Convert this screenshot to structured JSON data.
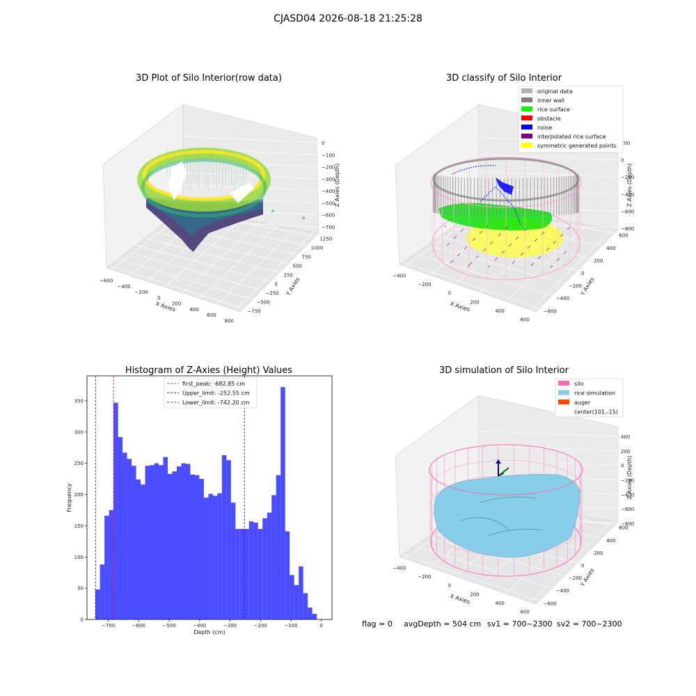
{
  "suptitle": "CJASD04 2026-08-18 21:25:28",
  "status": {
    "flag": "flag = 0",
    "avg_depth": "avgDepth = 504 cm",
    "sv1": "sv1 = 700~2300",
    "sv2": "sv2 = 700~2300"
  },
  "chart_data": [
    {
      "type": "scatter",
      "title": "3D Plot of Silo Interior(row data)",
      "xlabel": "X Axies",
      "ylabel": "Y Axies",
      "zlabel": "Z Axies (Depth)",
      "xticks": [
        "−600",
        "−400",
        "−200",
        "0",
        "200",
        "400",
        "600",
        "800"
      ],
      "yticks": [
        "−750",
        "−500",
        "−250",
        "0",
        "250",
        "500",
        "750",
        "1000",
        "1250"
      ],
      "zticks": [
        "0",
        "−100",
        "−200",
        "−300",
        "−400",
        "−500",
        "−600",
        "−700"
      ],
      "colormap": "viridis"
    },
    {
      "type": "scatter",
      "title": "3D classify of Silo Interior",
      "xlabel": "X Axies",
      "ylabel": "Y Axies",
      "zlabel": "Z Axies (Depth)",
      "xticks": [
        "−400",
        "−200",
        "0",
        "200",
        "400",
        "600"
      ],
      "yticks": [
        "−600",
        "−400",
        "−200",
        "0",
        "200",
        "400",
        "600"
      ],
      "zticks": [
        "200",
        "0",
        "−200",
        "−400",
        "−600",
        "−800"
      ],
      "legend_position": "top-right",
      "legend": [
        {
          "label": "original data",
          "color": "#b3b3b3"
        },
        {
          "label": "inner wall",
          "color": "#808080"
        },
        {
          "label": "rice surface",
          "color": "#00ff00"
        },
        {
          "label": "obstacle",
          "color": "#ff0000"
        },
        {
          "label": "noise",
          "color": "#0000ff"
        },
        {
          "label": "interpolated rice surface",
          "color": "#800080"
        },
        {
          "label": "symmetric generated points",
          "color": "#ffff00"
        }
      ]
    },
    {
      "type": "bar",
      "title": "Histogram of Z-Axies (Height) Values",
      "xlabel": "Depth (cm)",
      "ylabel": "Frequency",
      "xlim": [
        -770,
        35
      ],
      "ylim": [
        0,
        390
      ],
      "xticks": [
        -700,
        -600,
        -500,
        -400,
        -300,
        -200,
        -100,
        0
      ],
      "yticks": [
        0,
        50,
        100,
        150,
        200,
        250,
        300,
        350
      ],
      "bar_color": "#0000ff",
      "bins": {
        "start": -742.2,
        "width": 14.84,
        "counts": [
          48,
          88,
          166,
          175,
          347,
          292,
          267,
          257,
          246,
          224,
          216,
          246,
          247,
          250,
          247,
          260,
          233,
          237,
          245,
          250,
          249,
          232,
          231,
          225,
          195,
          201,
          198,
          202,
          263,
          255,
          187,
          145,
          145,
          145,
          157,
          155,
          145,
          162,
          171,
          199,
          231,
          372,
          141,
          71,
          55,
          85,
          42,
          19,
          9
        ]
      },
      "lines": [
        {
          "label": "first_peak: -682.85 cm",
          "x": -682.85,
          "color": "#ff0000"
        },
        {
          "label": "Upper_limit: -252.55 cm",
          "x": -252.55,
          "color": "#0000ff"
        },
        {
          "label": "Lower_limit: -742.20 cm",
          "x": -742.2,
          "color": "#0000ff"
        }
      ],
      "legend_position": "top-center"
    },
    {
      "type": "area",
      "title": "3D simulation of Silo Interior",
      "xlabel": "X Axies",
      "ylabel": "Y Axies",
      "zlabel": "Z Axies (Depth)",
      "xticks": [
        "−400",
        "−200",
        "0",
        "200",
        "400",
        "600"
      ],
      "yticks": [
        "−600",
        "−400",
        "−200",
        "0",
        "200",
        "400",
        "600"
      ],
      "zticks": [
        "400",
        "200",
        "0",
        "−200",
        "−400",
        "−600",
        "−800"
      ],
      "legend_position": "top-right",
      "legend": [
        {
          "label": "silo",
          "color": "#ff69b4"
        },
        {
          "label": "rice simulation",
          "color": "#87ceeb"
        },
        {
          "label": "auger",
          "color": "#ff4500"
        },
        {
          "label": "center(101,-15)",
          "color": ""
        }
      ]
    }
  ]
}
